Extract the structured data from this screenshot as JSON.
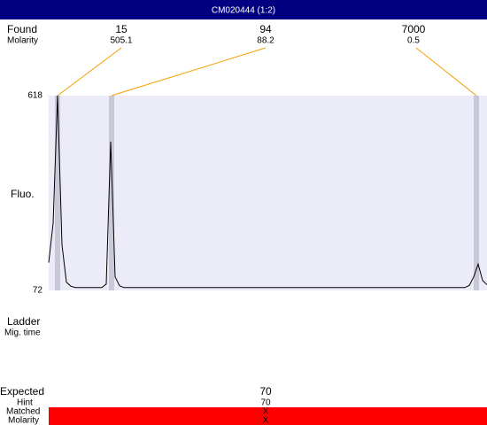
{
  "header": {
    "title": "CM020444 (1:2)"
  },
  "found": {
    "label": "Found",
    "sublabel": "Molarity",
    "peaks": [
      {
        "size": 15,
        "molarity": 505.1
      },
      {
        "size": 94,
        "molarity": 88.2
      },
      {
        "size": 7000,
        "molarity": 0.5
      }
    ]
  },
  "chart_data": {
    "type": "line",
    "ylabel": "Fluo.",
    "ylim": [
      72,
      618
    ],
    "yticks": [
      618,
      72
    ],
    "categories": [
      null,
      null,
      null,
      null,
      null,
      null,
      null,
      null,
      null,
      null,
      null,
      null,
      null,
      null,
      null,
      null,
      null,
      null,
      null,
      null,
      null,
      null,
      null,
      null,
      null,
      null,
      null,
      null,
      null,
      null,
      null,
      null,
      null,
      null,
      null,
      null,
      null,
      null,
      null,
      null,
      null,
      null,
      null,
      null,
      null,
      null,
      null,
      null,
      null,
      null,
      null,
      null,
      null,
      null,
      null,
      null,
      null,
      null,
      null,
      null,
      null,
      null,
      null,
      null,
      null,
      null,
      null,
      null,
      null,
      null,
      null,
      null,
      null,
      null,
      null,
      null,
      null,
      null,
      null,
      null,
      null,
      null,
      null,
      null,
      null,
      null,
      null,
      null,
      null,
      null,
      null,
      null,
      null,
      null,
      null,
      null,
      null,
      null,
      null,
      null
    ],
    "series": [
      {
        "color": "#000000",
        "values": [
          150,
          260,
          618,
          200,
          95,
          84,
          80,
          80,
          80,
          80,
          80,
          80,
          80,
          90,
          489,
          110,
          85,
          80,
          80,
          80,
          80,
          80,
          80,
          80,
          80,
          80,
          80,
          80,
          80,
          80,
          80,
          80,
          80,
          80,
          80,
          80,
          80,
          80,
          80,
          80,
          80,
          80,
          80,
          80,
          80,
          80,
          80,
          80,
          80,
          80,
          80,
          80,
          80,
          80,
          80,
          80,
          80,
          80,
          80,
          80,
          80,
          80,
          80,
          80,
          80,
          80,
          80,
          80,
          80,
          80,
          80,
          80,
          80,
          80,
          80,
          80,
          80,
          80,
          80,
          80,
          80,
          80,
          80,
          80,
          80,
          80,
          80,
          80,
          80,
          80,
          80,
          80,
          80,
          80,
          80,
          86,
          110,
          146,
          100,
          88
        ]
      }
    ]
  },
  "ladder": {
    "label": "Ladder",
    "sublabel": "Mig. time"
  },
  "expected": {
    "label": "Expected",
    "value": 70,
    "hint_label": "Hint",
    "hint": 70,
    "matched_label": "Matched",
    "matched": "X",
    "molarity_label": "Molarity",
    "molarity": "X"
  }
}
